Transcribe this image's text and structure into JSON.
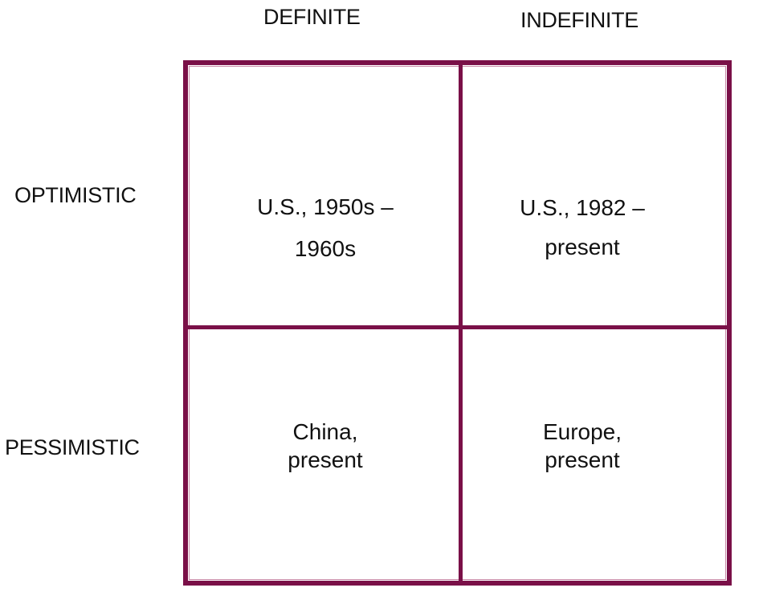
{
  "columns": {
    "definite": "DEFINITE",
    "indefinite": "INDEFINITE"
  },
  "rows": {
    "optimistic": "OPTIMISTIC",
    "pessimistic": "PESSIMISTIC"
  },
  "cells": {
    "optimistic_definite": {
      "line1": "U.S., 1950s –",
      "line2": "1960s"
    },
    "optimistic_indefinite": {
      "line1": "U.S., 1982 –",
      "line2": "present"
    },
    "pessimistic_definite": {
      "line1": "China,",
      "line2": "present"
    },
    "pessimistic_indefinite": {
      "line1": "Europe,",
      "line2": "present"
    }
  },
  "colors": {
    "border": "#7a1048",
    "text": "#111111",
    "background": "#ffffff"
  }
}
